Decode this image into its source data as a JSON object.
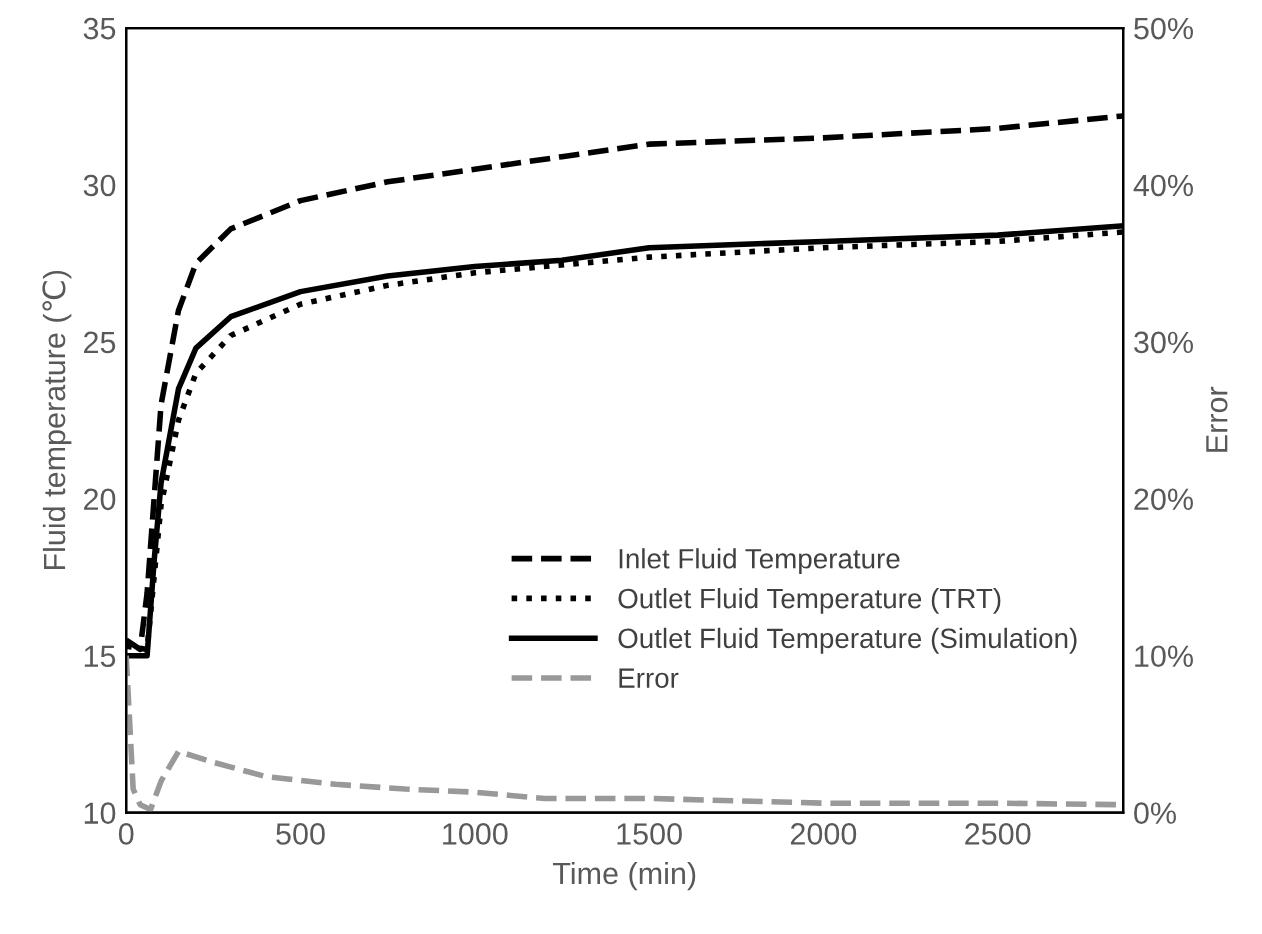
{
  "chart_data": {
    "type": "line",
    "xlabel": "Time (min)",
    "ylabel": "Fluid temperature (℃)",
    "y2label": "Error",
    "xlim": [
      0,
      2860
    ],
    "xticks": [
      0,
      500,
      1000,
      1500,
      2000,
      2500
    ],
    "ylim": [
      10,
      35
    ],
    "yticks": [
      10,
      15,
      20,
      25,
      30,
      35
    ],
    "y2lim": [
      0,
      50
    ],
    "y2ticks": [
      {
        "value": 0,
        "label": "0%"
      },
      {
        "value": 10,
        "label": "10%"
      },
      {
        "value": 20,
        "label": "20%"
      },
      {
        "value": 30,
        "label": "30%"
      },
      {
        "value": 40,
        "label": "40%"
      },
      {
        "value": 50,
        "label": "50%"
      }
    ],
    "grid": false,
    "legend": "bottom right",
    "series": [
      {
        "name": "Inlet Fluid Temperature",
        "color": "#000000",
        "line_style": "dashed",
        "x": [
          0,
          40,
          60,
          80,
          100,
          150,
          200,
          300,
          500,
          750,
          1000,
          1250,
          1500,
          2000,
          2500,
          2860
        ],
        "values": [
          15.5,
          15.2,
          17,
          20,
          23,
          26,
          27.5,
          28.6,
          29.5,
          30.1,
          30.5,
          30.9,
          31.3,
          31.5,
          31.8,
          32.2
        ]
      },
      {
        "name": "Outlet Fluid Temperature (TRT)",
        "color": "#000000",
        "line_style": "dotted",
        "x": [
          0,
          60,
          80,
          100,
          150,
          200,
          300,
          500,
          750,
          1000,
          1500,
          2000,
          2500,
          2860
        ],
        "values": [
          15.3,
          15.2,
          17.5,
          19.8,
          22.5,
          24,
          25.2,
          26.2,
          26.8,
          27.2,
          27.7,
          28.0,
          28.2,
          28.5
        ]
      },
      {
        "name": "Outlet Fluid Temperature (Simulation)",
        "color": "#000000",
        "line_style": "solid",
        "x": [
          0,
          60,
          80,
          100,
          150,
          200,
          300,
          500,
          750,
          1000,
          1250,
          1500,
          2000,
          2500,
          2860
        ],
        "values": [
          15,
          15,
          18,
          20.5,
          23.5,
          24.8,
          25.8,
          26.6,
          27.1,
          27.4,
          27.6,
          28.0,
          28.2,
          28.4,
          28.7
        ]
      },
      {
        "name": "Error",
        "color": "#999999",
        "line_style": "dashed",
        "axis": "y2",
        "x": [
          0,
          20,
          40,
          70,
          100,
          150,
          250,
          400,
          600,
          800,
          1000,
          1200,
          1500,
          2000,
          2500,
          2860
        ],
        "values": [
          10,
          1.5,
          0.5,
          0.2,
          2,
          3.9,
          3.2,
          2.3,
          1.8,
          1.5,
          1.3,
          0.9,
          0.9,
          0.6,
          0.6,
          0.5
        ]
      }
    ]
  }
}
